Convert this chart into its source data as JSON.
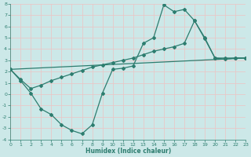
{
  "xlabel": "Humidex (Indice chaleur)",
  "bg_color": "#cce8e8",
  "grid_color": "#e8c8c8",
  "line_color": "#2d7d6f",
  "xlim": [
    0,
    23
  ],
  "ylim": [
    -4,
    8
  ],
  "xticks": [
    0,
    1,
    2,
    3,
    4,
    5,
    6,
    7,
    8,
    9,
    10,
    11,
    12,
    13,
    14,
    15,
    16,
    17,
    18,
    19,
    20,
    21,
    22,
    23
  ],
  "yticks": [
    -4,
    -3,
    -2,
    -1,
    0,
    1,
    2,
    3,
    4,
    5,
    6,
    7,
    8
  ],
  "curve1_x": [
    0,
    1,
    2,
    3,
    4,
    5,
    6,
    7,
    8,
    9,
    10,
    11,
    12,
    13,
    14,
    15,
    16,
    17,
    18,
    19,
    20,
    21,
    22,
    23
  ],
  "curve1_y": [
    2.2,
    1.2,
    0.1,
    -1.3,
    -1.8,
    -2.7,
    -3.2,
    -3.5,
    -2.7,
    0.1,
    2.2,
    2.3,
    2.5,
    4.5,
    5.0,
    7.9,
    7.3,
    7.5,
    6.5,
    4.9,
    3.2,
    3.1,
    3.2,
    3.2
  ],
  "curve2_x": [
    0,
    23
  ],
  "curve2_y": [
    2.2,
    3.2
  ],
  "curve3_x": [
    0,
    1,
    2,
    3,
    4,
    5,
    6,
    7,
    8,
    9,
    10,
    11,
    12,
    13,
    14,
    15,
    16,
    17,
    18,
    19,
    20,
    21,
    22,
    23
  ],
  "curve3_y": [
    2.2,
    1.3,
    0.5,
    0.8,
    1.2,
    1.5,
    1.8,
    2.1,
    2.4,
    2.6,
    2.8,
    3.0,
    3.2,
    3.5,
    3.8,
    4.0,
    4.2,
    4.5,
    6.5,
    5.0,
    3.2,
    3.2,
    3.2,
    3.2
  ]
}
